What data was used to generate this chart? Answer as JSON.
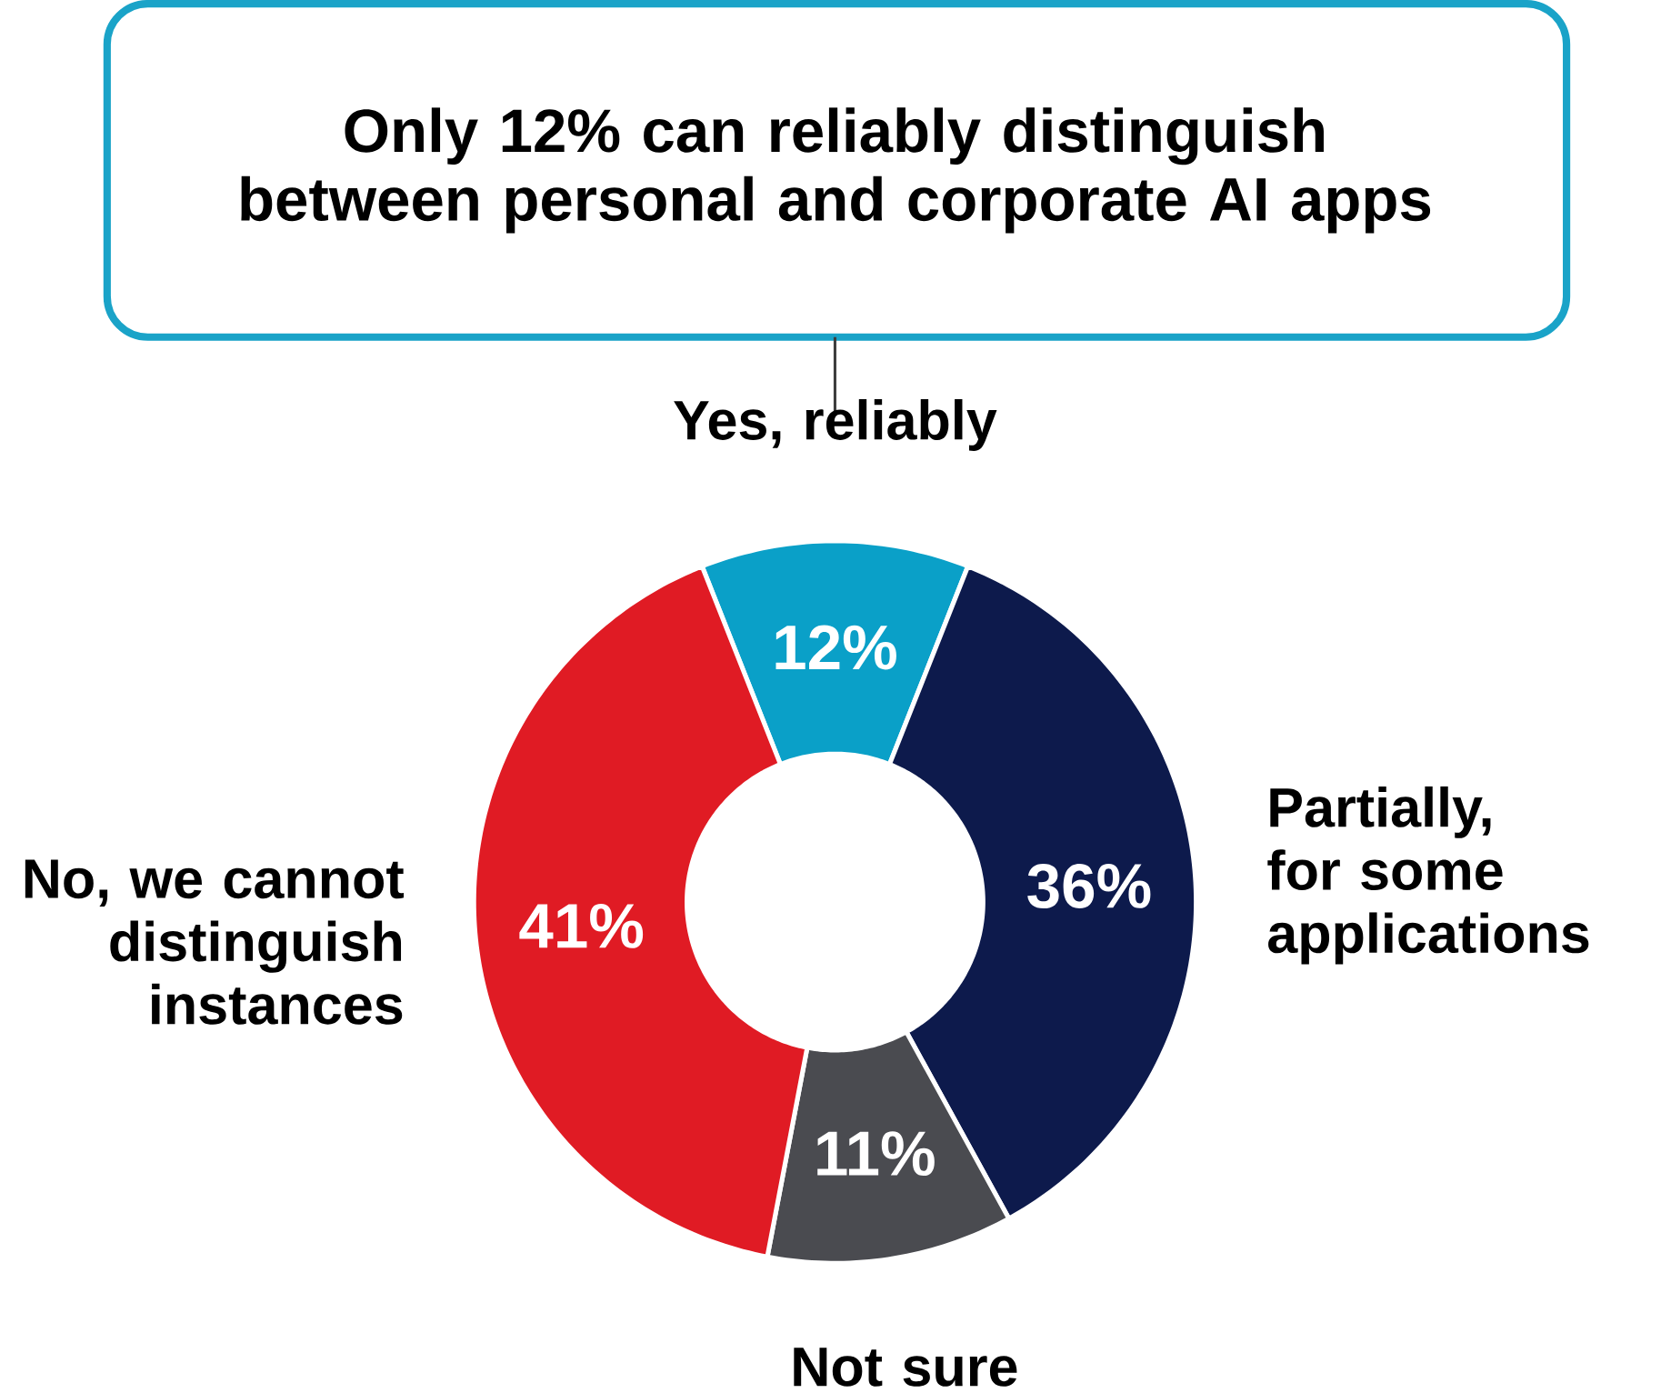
{
  "chart_data": {
    "type": "donut",
    "title": "Only 12% can reliably distinguish between personal and corporate AI apps",
    "categories": [
      "Yes, reliably",
      "Partially, for some applications",
      "Not sure",
      "No, we cannot distinguish instances"
    ],
    "values": [
      12,
      36,
      11,
      41
    ],
    "colors": [
      "#0aa0c8",
      "#0d1a4c",
      "#4a4b50",
      "#e01b24"
    ],
    "value_labels": [
      "12%",
      "36%",
      "11%",
      "41%"
    ]
  }
}
